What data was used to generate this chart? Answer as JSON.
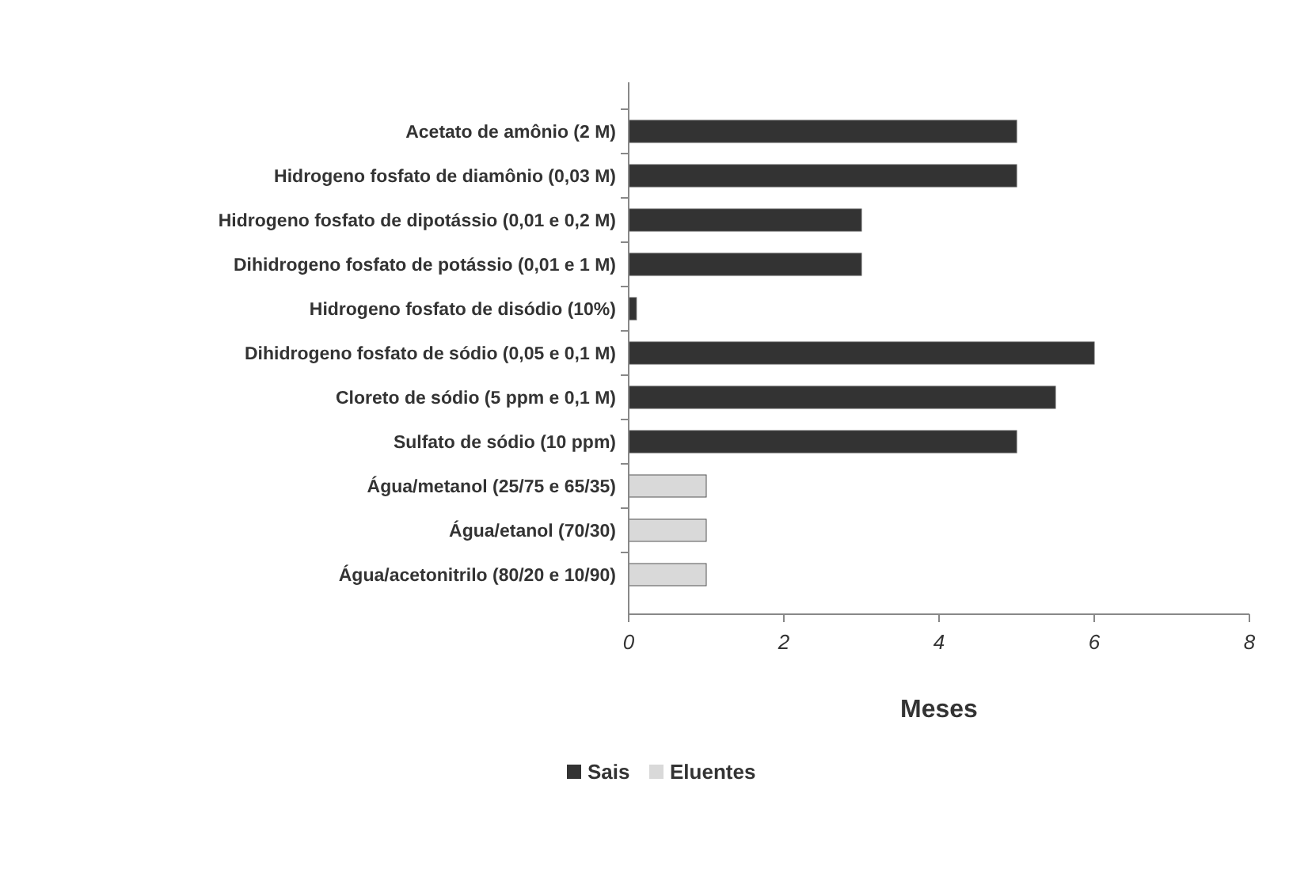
{
  "chart_data": {
    "type": "bar",
    "orientation": "horizontal",
    "xlabel": "Meses",
    "categories": [
      "Acetato de amônio (2 M)",
      "Hidrogeno fosfato de diamônio (0,03 M)",
      "Hidrogeno fosfato de dipotássio (0,01 e 0,2 M)",
      "Dihidrogeno fosfato de potássio (0,01 e 1 M)",
      "Hidrogeno fosfato de disódio (10%)",
      "Dihidrogeno fosfato de sódio (0,05 e 0,1 M)",
      "Cloreto de sódio (5 ppm e 0,1 M)",
      "Sulfato de sódio (10 ppm)",
      "Água/metanol (25/75 e 65/35)",
      "Água/etanol (70/30)",
      "Água/acetonitrilo (80/20 e 10/90)"
    ],
    "series": [
      {
        "name": "Sais",
        "color": "#333333",
        "values": [
          5,
          5,
          3,
          3,
          0.1,
          6,
          5.5,
          5,
          null,
          null,
          null
        ]
      },
      {
        "name": "Eluentes",
        "color": "#d9d9d9",
        "values": [
          null,
          null,
          null,
          null,
          null,
          null,
          null,
          null,
          1,
          1,
          1
        ]
      }
    ],
    "xlim": [
      0,
      8
    ],
    "xticks": [
      0,
      2,
      4,
      6,
      8
    ],
    "grid": false,
    "legend": "bottom"
  }
}
